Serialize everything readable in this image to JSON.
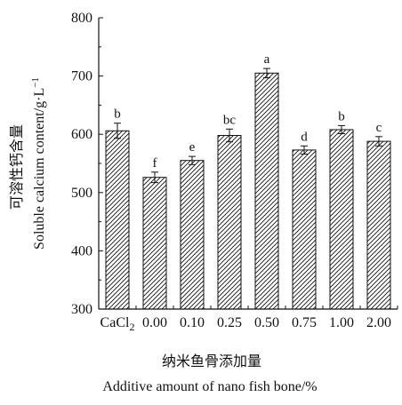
{
  "chart_data": {
    "type": "bar",
    "categories": [
      "CaCl2",
      "0.00",
      "0.10",
      "0.25",
      "0.50",
      "0.75",
      "1.00",
      "2.00"
    ],
    "values": [
      606,
      526,
      555,
      598,
      705,
      573,
      608,
      588
    ],
    "errors": [
      13,
      9,
      7,
      11,
      8,
      7,
      7,
      8
    ],
    "significance_letters": [
      "b",
      "f",
      "e",
      "bc",
      "a",
      "d",
      "b",
      "c"
    ],
    "ylim": [
      300,
      800
    ],
    "yticks": [
      300,
      400,
      500,
      600,
      700,
      800
    ],
    "ylabel_cn": "可溶性钙含量",
    "ylabel_en": "Soluble  calcium  content/g·L",
    "ylabel_en_superscript": "−1",
    "xlabel_cn": "纳米鱼骨添加量",
    "xlabel_en": "Additive  amount  of  nano  fish  bone/%",
    "bar_fill": "hatched",
    "colors": {
      "ink": "#111111",
      "bar_background": "#ffffff"
    }
  }
}
